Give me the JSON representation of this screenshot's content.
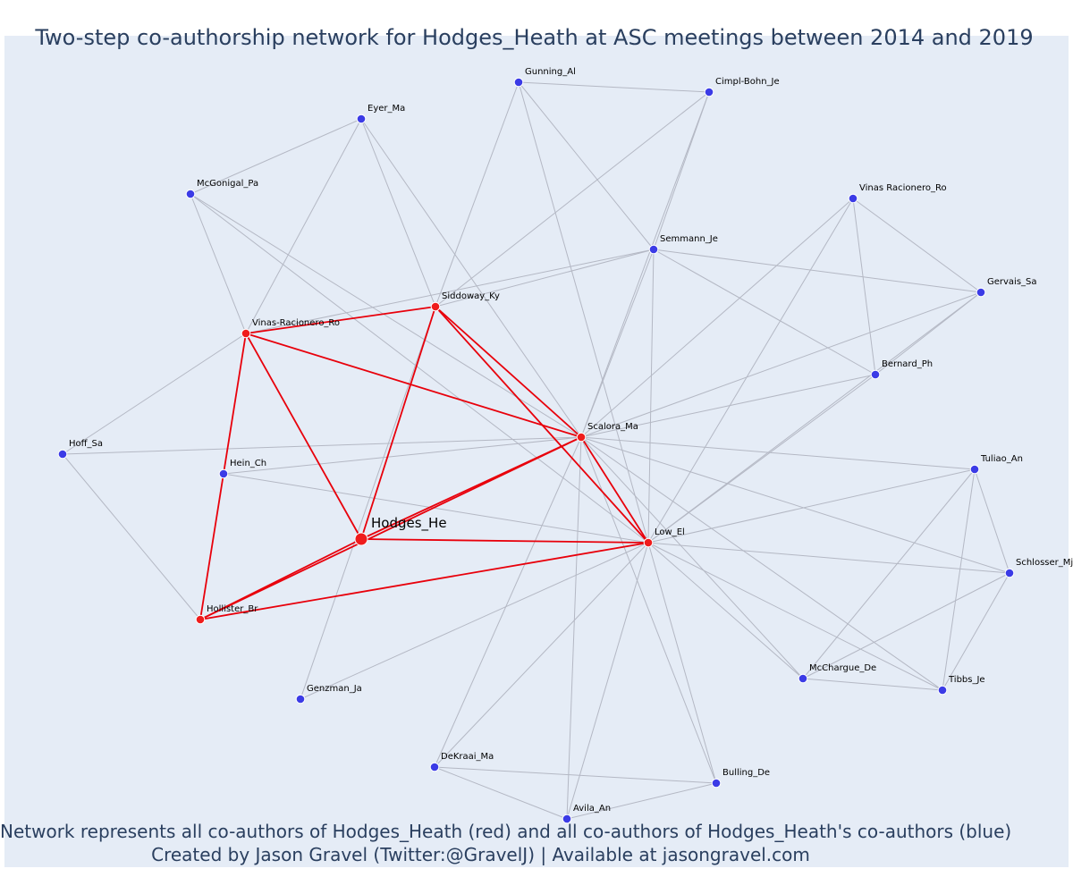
{
  "title": "Two-step co-authorship network for Hodges_Heath at ASC meetings between 2014 and 2019",
  "caption": {
    "line1": "Network represents all co-authors of Hodges_Heath (red) and all co-authors of Hodges_Heath's co-authors (blue)",
    "line2": "Created by Jason Gravel (Twitter:@GravelJ) | Available at jasongravel.com"
  },
  "colors": {
    "focal": "#ef1c1c",
    "coauthor": "#ef1c1c",
    "second_step": "#3b3be6",
    "red_edge": "#e8000b",
    "gray_edge": "#b4b8c4",
    "background": "#e5ecf6",
    "text": "#2a3f5f"
  },
  "nodes": [
    {
      "id": "Hodges_He",
      "label": "Hodges_He",
      "group": "focal"
    },
    {
      "id": "Scalora_Ma",
      "label": "Scalora_Ma",
      "group": "coauthor"
    },
    {
      "id": "Low_El",
      "label": "Low_El",
      "group": "coauthor"
    },
    {
      "id": "Siddoway_Ky",
      "label": "Siddoway_Ky",
      "group": "coauthor"
    },
    {
      "id": "Vinas-Racionero_Ro",
      "label": "Vinas-Racionero_Ro",
      "group": "coauthor"
    },
    {
      "id": "Hollister_Br",
      "label": "Hollister_Br",
      "group": "coauthor"
    },
    {
      "id": "Hein_Ch",
      "label": "Hein_Ch",
      "group": "second"
    },
    {
      "id": "Gunning_Al",
      "label": "Gunning_Al",
      "group": "second"
    },
    {
      "id": "Cimpl-Bohn_Je",
      "label": "Cimpl-Bohn_Je",
      "group": "second"
    },
    {
      "id": "Eyer_Ma",
      "label": "Eyer_Ma",
      "group": "second"
    },
    {
      "id": "McGonigal_Pa",
      "label": "McGonigal_Pa",
      "group": "second"
    },
    {
      "id": "Vinas Racionero_Ro",
      "label": "Vinas Racionero_Ro",
      "group": "second"
    },
    {
      "id": "Semmann_Je",
      "label": "Semmann_Je",
      "group": "second"
    },
    {
      "id": "Gervais_Sa",
      "label": "Gervais_Sa",
      "group": "second"
    },
    {
      "id": "Bernard_Ph",
      "label": "Bernard_Ph",
      "group": "second"
    },
    {
      "id": "Hoff_Sa",
      "label": "Hoff_Sa",
      "group": "second"
    },
    {
      "id": "Tuliao_An",
      "label": "Tuliao_An",
      "group": "second"
    },
    {
      "id": "Schlosser_Mj",
      "label": "Schlosser_Mj",
      "group": "second"
    },
    {
      "id": "McChargue_De",
      "label": "McChargue_De",
      "group": "second"
    },
    {
      "id": "Tibbs_Je",
      "label": "Tibbs_Je",
      "group": "second"
    },
    {
      "id": "Genzman_Ja",
      "label": "Genzman_Ja",
      "group": "second"
    },
    {
      "id": "DeKraai_Ma",
      "label": "DeKraai_Ma",
      "group": "second"
    },
    {
      "id": "Bulling_De",
      "label": "Bulling_De",
      "group": "second"
    },
    {
      "id": "Avila_An",
      "label": "Avila_An",
      "group": "second"
    }
  ],
  "edges": [
    [
      "Hodges_He",
      "Scalora_Ma",
      "red"
    ],
    [
      "Hodges_He",
      "Low_El",
      "red"
    ],
    [
      "Hodges_He",
      "Siddoway_Ky",
      "red"
    ],
    [
      "Hodges_He",
      "Vinas-Racionero_Ro",
      "red"
    ],
    [
      "Hodges_He",
      "Hollister_Br",
      "red"
    ],
    [
      "Scalora_Ma",
      "Low_El",
      "red"
    ],
    [
      "Scalora_Ma",
      "Siddoway_Ky",
      "red"
    ],
    [
      "Scalora_Ma",
      "Vinas-Racionero_Ro",
      "red"
    ],
    [
      "Scalora_Ma",
      "Hollister_Br",
      "red"
    ],
    [
      "Low_El",
      "Siddoway_Ky",
      "red"
    ],
    [
      "Low_El",
      "Hollister_Br",
      "red"
    ],
    [
      "Siddoway_Ky",
      "Vinas-Racionero_Ro",
      "red"
    ],
    [
      "Vinas-Racionero_Ro",
      "Hollister_Br",
      "red"
    ],
    [
      "Gunning_Al",
      "Cimpl-Bohn_Je",
      "gray"
    ],
    [
      "Gunning_Al",
      "Semmann_Je",
      "gray"
    ],
    [
      "Gunning_Al",
      "Siddoway_Ky",
      "gray"
    ],
    [
      "Gunning_Al",
      "Low_El",
      "gray"
    ],
    [
      "Cimpl-Bohn_Je",
      "Semmann_Je",
      "gray"
    ],
    [
      "Cimpl-Bohn_Je",
      "Siddoway_Ky",
      "gray"
    ],
    [
      "Cimpl-Bohn_Je",
      "Scalora_Ma",
      "gray"
    ],
    [
      "Eyer_Ma",
      "McGonigal_Pa",
      "gray"
    ],
    [
      "Eyer_Ma",
      "Vinas-Racionero_Ro",
      "gray"
    ],
    [
      "Eyer_Ma",
      "Siddoway_Ky",
      "gray"
    ],
    [
      "Eyer_Ma",
      "Scalora_Ma",
      "gray"
    ],
    [
      "McGonigal_Pa",
      "Vinas-Racionero_Ro",
      "gray"
    ],
    [
      "McGonigal_Pa",
      "Scalora_Ma",
      "gray"
    ],
    [
      "McGonigal_Pa",
      "Low_El",
      "gray"
    ],
    [
      "Semmann_Je",
      "Siddoway_Ky",
      "gray"
    ],
    [
      "Semmann_Je",
      "Vinas-Racionero_Ro",
      "gray"
    ],
    [
      "Semmann_Je",
      "Gervais_Sa",
      "gray"
    ],
    [
      "Semmann_Je",
      "Bernard_Ph",
      "gray"
    ],
    [
      "Semmann_Je",
      "Scalora_Ma",
      "gray"
    ],
    [
      "Semmann_Je",
      "Low_El",
      "gray"
    ],
    [
      "Vinas Racionero_Ro",
      "Gervais_Sa",
      "gray"
    ],
    [
      "Vinas Racionero_Ro",
      "Bernard_Ph",
      "gray"
    ],
    [
      "Vinas Racionero_Ro",
      "Scalora_Ma",
      "gray"
    ],
    [
      "Vinas Racionero_Ro",
      "Low_El",
      "gray"
    ],
    [
      "Gervais_Sa",
      "Bernard_Ph",
      "gray"
    ],
    [
      "Gervais_Sa",
      "Scalora_Ma",
      "gray"
    ],
    [
      "Gervais_Sa",
      "Low_El",
      "gray"
    ],
    [
      "Bernard_Ph",
      "Scalora_Ma",
      "gray"
    ],
    [
      "Bernard_Ph",
      "Low_El",
      "gray"
    ],
    [
      "Hoff_Sa",
      "Vinas-Racionero_Ro",
      "gray"
    ],
    [
      "Hoff_Sa",
      "Hollister_Br",
      "gray"
    ],
    [
      "Hoff_Sa",
      "Scalora_Ma",
      "gray"
    ],
    [
      "Hein_Ch",
      "Scalora_Ma",
      "gray"
    ],
    [
      "Hein_Ch",
      "Low_El",
      "gray"
    ],
    [
      "Tuliao_An",
      "Scalora_Ma",
      "gray"
    ],
    [
      "Tuliao_An",
      "Low_El",
      "gray"
    ],
    [
      "Tuliao_An",
      "McChargue_De",
      "gray"
    ],
    [
      "Tuliao_An",
      "Tibbs_Je",
      "gray"
    ],
    [
      "Tuliao_An",
      "Schlosser_Mj",
      "gray"
    ],
    [
      "Schlosser_Mj",
      "Scalora_Ma",
      "gray"
    ],
    [
      "Schlosser_Mj",
      "Low_El",
      "gray"
    ],
    [
      "Schlosser_Mj",
      "McChargue_De",
      "gray"
    ],
    [
      "Schlosser_Mj",
      "Tibbs_Je",
      "gray"
    ],
    [
      "McChargue_De",
      "Tibbs_Je",
      "gray"
    ],
    [
      "McChargue_De",
      "Scalora_Ma",
      "gray"
    ],
    [
      "McChargue_De",
      "Low_El",
      "gray"
    ],
    [
      "Tibbs_Je",
      "Scalora_Ma",
      "gray"
    ],
    [
      "Tibbs_Je",
      "Low_El",
      "gray"
    ],
    [
      "Genzman_Ja",
      "Siddoway_Ky",
      "gray"
    ],
    [
      "Genzman_Ja",
      "Low_El",
      "gray"
    ],
    [
      "DeKraai_Ma",
      "Scalora_Ma",
      "gray"
    ],
    [
      "DeKraai_Ma",
      "Low_El",
      "gray"
    ],
    [
      "DeKraai_Ma",
      "Avila_An",
      "gray"
    ],
    [
      "DeKraai_Ma",
      "Bulling_De",
      "gray"
    ],
    [
      "Bulling_De",
      "Scalora_Ma",
      "gray"
    ],
    [
      "Bulling_De",
      "Low_El",
      "gray"
    ],
    [
      "Bulling_De",
      "Avila_An",
      "gray"
    ],
    [
      "Avila_An",
      "Scalora_Ma",
      "gray"
    ],
    [
      "Avila_An",
      "Low_El",
      "gray"
    ]
  ]
}
